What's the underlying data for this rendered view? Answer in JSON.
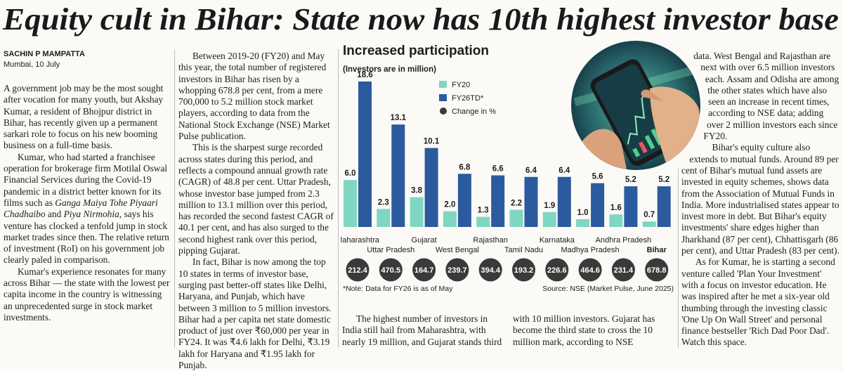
{
  "headline": "Equity cult in Bihar: State now has 10th highest investor base",
  "byline": {
    "author": "SACHIN P MAMPATTA",
    "dateline": "Mumbai, 10 July"
  },
  "article": {
    "col1": [
      [
        "A government job may be the most sought after vocation for many youth, but Akshay Kumar, a resident of Bhojpur district in Bihar, has recently given up a permanent sarkari role to focus on his new booming business on a full-time basis."
      ],
      [
        "Kumar, who had started a franchisee operation for brokerage firm Motilal Oswal Financial Services during the Covid-19 pandemic in a district better known for its films such as ",
        "Ganga Maiya Tohe Piyaari Chadhaibo",
        " and ",
        "Piya Nirmohia",
        ", says his venture has clocked a tenfold jump in stock market trades since then. The relative return of investment (RoI) on his government job clearly paled in comparison."
      ],
      [
        "Kumar's experience resonates for many across Bihar — the state with the lowest per capita income in the country is witnessing an unprecedented surge in stock market investments."
      ]
    ],
    "col2": [
      [
        "Between 2019-20 (FY20) and May this year, the total number of registered investors in Bihar has risen by a whopping 678.8 per cent, from a mere 700,000 to 5.2 million stock market players, according to data from the National Stock Exchange (NSE) Market Pulse publication."
      ],
      [
        "This is the sharpest surge recorded across states during this period, and reflects a compound annual growth rate (CAGR) of 48.8 per cent. Uttar Pradesh, whose investor base jumped from 2.3 million to 13.1 million over this period, has recorded the second fastest CAGR of 40.1 per cent, and has also surged to the second highest rank over this period, pipping Gujarat."
      ],
      [
        "In fact, Bihar is now among the top 10 states in terms of investor base, surging past better-off states like Delhi, Haryana, and Punjab, which have between 3 million to 5 million investors. Bihar had a per capita net state domestic product of just over ₹60,000 per year in FY24. It was ₹4.6 lakh for Delhi, ₹3.19 lakh for Haryana and ₹1.95 lakh for Punjab."
      ]
    ],
    "col3": [
      [
        "The highest number of investors in India still hail from Maharashtra, with nearly 19 million, and Gujarat stands third with 10 million investors. Gujarat has become the third state to cross the 10 million mark, according to NSE"
      ]
    ],
    "col4": [
      [
        "data. West Bengal and Rajasthan are next with over 6.5 million investors each. Assam and Odisha are among the other states which have also seen an increase in recent times, according to NSE data; adding over 2 million investors each since FY20."
      ],
      [
        "Bihar's equity culture also extends to mutual funds. Around 89 per cent of Bihar's mutual fund assets are invested in equity schemes, shows data from the Association of Mutual Funds in India. More industrialised states appear to invest more in debt. But Bihar's equity investments' share edges higher than Jharkhand (87 per cent), Chhattisgarh (86 per cent), and Uttar Pradesh (83 per cent)."
      ],
      [
        "As for Kumar, he is starting a second venture called 'Plan Your Investment' with a focus on investor education. He was inspired after he met a six-year old thumbing through the investing classic 'One Up On Wall Street' and personal finance bestseller 'Rich Dad Poor Dad'. Watch this space."
      ]
    ]
  },
  "chart_data": {
    "type": "bar",
    "title": "Increased participation",
    "subtitle": "(Investors are in million)",
    "categories": [
      "Maharashtra",
      "Uttar Pradesh",
      "Gujarat",
      "West Bengal",
      "Rajasthan",
      "Tamil Nadu",
      "Karnataka",
      "Madhya Pradesh",
      "Andhra Pradesh",
      "Bihar"
    ],
    "emphasis": "Bihar",
    "series": [
      {
        "name": "FY20",
        "color": "#7fd6c3",
        "values": [
          6.0,
          2.3,
          3.8,
          2.0,
          1.3,
          2.2,
          1.9,
          1.0,
          1.6,
          0.7
        ],
        "value_labels": [
          "6.0",
          "2.3",
          "3.8",
          "2.0",
          "1.3",
          "2.2",
          "1.9",
          "1.0",
          "1.6",
          "0.7"
        ]
      },
      {
        "name": "FY26TD*",
        "color": "#2c5a9e",
        "values": [
          18.6,
          13.1,
          10.1,
          6.8,
          6.6,
          6.4,
          6.4,
          5.6,
          5.2,
          5.2
        ],
        "value_labels": [
          "18.6",
          "13.1",
          "10.1",
          "6.8",
          "6.6",
          "6.4",
          "6.4",
          "5.6",
          "5.2",
          "5.2"
        ]
      },
      {
        "name": "Change in %",
        "color": "#3a3a3a",
        "marker": "circle",
        "values": [
          212.4,
          470.5,
          164.7,
          239.7,
          394.4,
          193.2,
          226.6,
          464.6,
          231.4,
          678.8
        ]
      }
    ],
    "note": "*Note: Data for FY26 is as of May",
    "source": "Source: NSE (Market Pulse, June 2025)"
  }
}
